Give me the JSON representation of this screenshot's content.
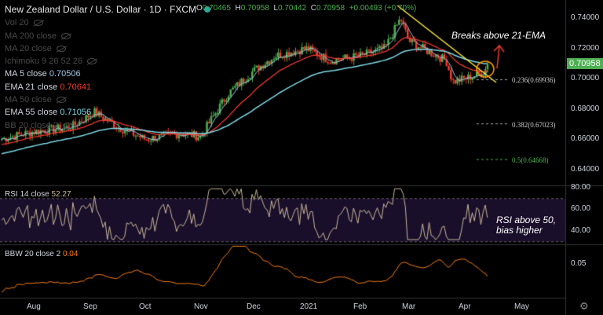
{
  "header": {
    "title": "New Zealand Dollar / U.S. Dollar · 1D · FXCM",
    "ohlc": [
      {
        "k": "O",
        "v": "0.70465"
      },
      {
        "k": "H",
        "v": "0.70958"
      },
      {
        "k": "L",
        "v": "0.70442"
      },
      {
        "k": "C",
        "v": "0.70958"
      },
      {
        "k": "",
        "v": "+0.00493 (+0.70%)"
      }
    ]
  },
  "indicators": [
    {
      "label": "Vol 20",
      "value": "",
      "hidden": true
    },
    {
      "label": "MA 200 close",
      "value": "",
      "hidden": true
    },
    {
      "label": "MA 20 close",
      "value": "",
      "hidden": true
    },
    {
      "label": "Ichimoku 9 26 52 26",
      "value": "",
      "hidden": true
    },
    {
      "label": "MA 5 close",
      "value": "0.70506",
      "color": "#9ec7e6"
    },
    {
      "label": "EMA 21 close",
      "value": "0.70641",
      "color": "#f23a2e"
    },
    {
      "label": "MA 50 close",
      "value": "",
      "hidden": true
    },
    {
      "label": "EMA 55 close",
      "value": "0.71056",
      "color": "#7fdbe8"
    },
    {
      "label": "BB 20 close 2",
      "value": "",
      "hidden": true
    }
  ],
  "rsi": {
    "label": "RSI 14 close",
    "value": "52.27"
  },
  "bbw": {
    "label": "BBW 20 close 2",
    "value": "0.04"
  },
  "annotations": {
    "breakout": "Breaks above 21-EMA",
    "rsi_note_1": "RSI above 50,",
    "rsi_note_2": "bias higher"
  },
  "fib": [
    {
      "label": "0.236(0.69936)",
      "level": 0.69936
    },
    {
      "label": "0.382(0.67023)",
      "level": 0.67023
    },
    {
      "label": "0.5(0.64668)",
      "level": 0.64668
    }
  ],
  "price_axis": [
    "0.74000",
    "0.72000",
    "0.70000",
    "0.68000",
    "0.66000",
    "0.64000"
  ],
  "last_price": "0.70958",
  "rsi_axis": [
    "80.00",
    "60.00",
    "40.00"
  ],
  "bbw_axis": [
    "0.05"
  ],
  "time_axis": [
    "Aug",
    "Sep",
    "Oct",
    "Nov",
    "Dec",
    "2021",
    "Feb",
    "Mar",
    "Apr",
    "May"
  ],
  "chart_data": {
    "type": "candlestick",
    "series_approx_close": [
      [
        0,
        0.66
      ],
      [
        42,
        0.665
      ],
      [
        90,
        0.668
      ],
      [
        120,
        0.678
      ],
      [
        150,
        0.668
      ],
      [
        185,
        0.66
      ],
      [
        230,
        0.664
      ],
      [
        255,
        0.662
      ],
      [
        290,
        0.69
      ],
      [
        322,
        0.705
      ],
      [
        350,
        0.715
      ],
      [
        390,
        0.72
      ],
      [
        420,
        0.712
      ],
      [
        458,
        0.715
      ],
      [
        490,
        0.72
      ],
      [
        510,
        0.74
      ],
      [
        520,
        0.725
      ],
      [
        545,
        0.718
      ],
      [
        568,
        0.712
      ],
      [
        576,
        0.698
      ],
      [
        592,
        0.7
      ],
      [
        615,
        0.704
      ],
      [
        622,
        0.7096
      ]
    ],
    "colors": {
      "up": "#4caf50",
      "down": "#f23a2e"
    }
  }
}
